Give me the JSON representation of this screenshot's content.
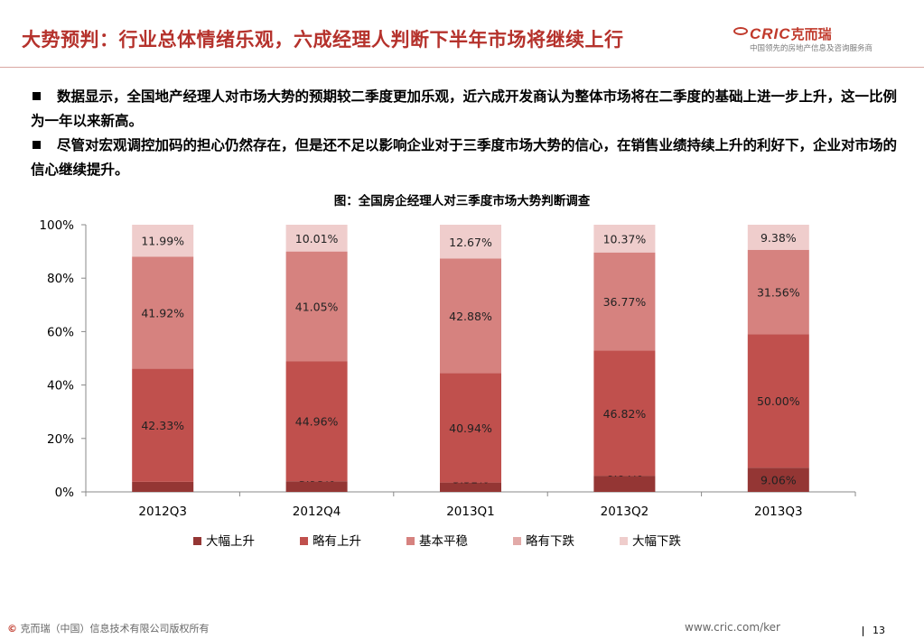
{
  "header": {
    "title": "大势预判：行业总体情绪乐观，六成经理人判断下半年市场将继续上行",
    "logo_text": "CRIC",
    "logo_cn": "克而瑞",
    "logo_tagline": "中国领先的房地产信息及咨询服务商"
  },
  "bullets": [
    "数据显示，全国地产经理人对市场大势的预期较二季度更加乐观，近六成开发商认为整体市场将在二季度的基础上进一步上升，这一比例为一年以来新高。",
    "尽管对宏观调控加码的担心仍然存在，但是还不足以影响企业对于三季度市场大势的信心，在销售业绩持续上升的利好下，企业对市场的信心继续提升。"
  ],
  "chart_title": "图：全国房企经理人对三季度市场大势判断调查",
  "chart_data": {
    "type": "bar",
    "stacked": true,
    "title": "图：全国房企经理人对三季度市场大势判断调查",
    "categories": [
      "2012Q3",
      "2012Q4",
      "2013Q1",
      "2013Q2",
      "2013Q3"
    ],
    "ylim": [
      0,
      100
    ],
    "yticks": [
      "0%",
      "20%",
      "40%",
      "60%",
      "80%",
      "100%"
    ],
    "legend_position": "bottom",
    "series": [
      {
        "name": "大幅上升",
        "color": "#943634",
        "values": [
          3.76,
          3.98,
          3.51,
          6.04,
          9.06
        ],
        "labels": [
          "",
          "3.98%",
          "3.51%",
          "6.04%",
          "9.06%"
        ]
      },
      {
        "name": "略有上升",
        "color": "#c0504d",
        "values": [
          42.33,
          44.96,
          40.94,
          46.82,
          50.0
        ],
        "labels": [
          "42.33%",
          "44.96%",
          "40.94%",
          "46.82%",
          "50.00%"
        ]
      },
      {
        "name": "基本平稳",
        "color": "#d6827f",
        "values": [
          41.92,
          41.05,
          42.88,
          36.77,
          31.56
        ],
        "labels": [
          "41.92%",
          "41.05%",
          "42.88%",
          "36.77%",
          "31.56%"
        ]
      },
      {
        "name": "略有下跌",
        "color": "#e2aaa8",
        "values": [
          0,
          0,
          0,
          0,
          0
        ],
        "labels": [
          "",
          "",
          "",
          "",
          ""
        ]
      },
      {
        "name": "大幅下跌",
        "color": "#efcdcc",
        "values": [
          11.99,
          10.01,
          12.67,
          10.37,
          9.38
        ],
        "labels": [
          "11.99%",
          "10.01%",
          "12.67%",
          "10.37%",
          "9.38%"
        ]
      }
    ]
  },
  "footer": {
    "copyright_symbol": "©",
    "copyright": "克而瑞（中国）信息技术有限公司版权所有",
    "url": "www.cric.com/ker",
    "page": "13"
  }
}
